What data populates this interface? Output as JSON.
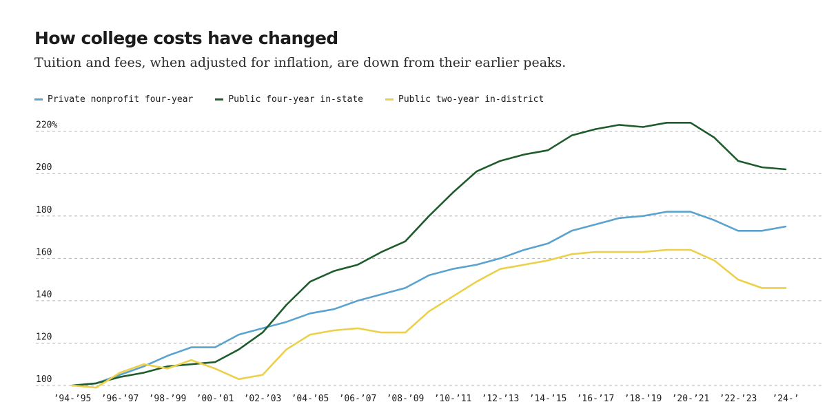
{
  "header": {
    "title": "How college costs have changed",
    "subtitle": "Tuition and fees, when adjusted for inflation, are down from their earlier peaks."
  },
  "legend": [
    {
      "label": "Private nonprofit four-year",
      "color": "#5ba3cf"
    },
    {
      "label": "Public four-year in-state",
      "color": "#1f5c2c"
    },
    {
      "label": "Public two-year in-district",
      "color": "#ecd04a"
    }
  ],
  "chart_data": {
    "type": "line",
    "title": "How college costs have changed",
    "subtitle": "Tuition and fees, when adjusted for inflation, are down from their earlier peaks.",
    "xlabel": "",
    "ylabel": "",
    "ylim": [
      99,
      224
    ],
    "grid": true,
    "legend_position": "top-left",
    "y_ticks": [
      100,
      120,
      140,
      160,
      180,
      200,
      220
    ],
    "y_tick_labels": [
      "100",
      "120",
      "140",
      "160",
      "180",
      "200",
      "220%"
    ],
    "x_tick_labels": [
      "’94-’95",
      "’96-’97",
      "’98-’99",
      "’00-’01",
      "’02-’03",
      "’04-’05",
      "’06-’07",
      "’08-’09",
      "’10-’11",
      "’12-’13",
      "’14-’15",
      "’16-’17",
      "’18-’19",
      "’20-’21",
      "’22-’23",
      "’24-’"
    ],
    "x_tick_indices": [
      0,
      2,
      4,
      6,
      8,
      10,
      12,
      14,
      16,
      18,
      20,
      22,
      24,
      26,
      28,
      30
    ],
    "categories": [
      "94-95",
      "95-96",
      "96-97",
      "97-98",
      "98-99",
      "99-00",
      "00-01",
      "01-02",
      "02-03",
      "03-04",
      "04-05",
      "05-06",
      "06-07",
      "07-08",
      "08-09",
      "09-10",
      "10-11",
      "11-12",
      "12-13",
      "13-14",
      "14-15",
      "15-16",
      "16-17",
      "17-18",
      "18-19",
      "19-20",
      "20-21",
      "21-22",
      "22-23",
      "23-24",
      "24-25"
    ],
    "series": [
      {
        "name": "Private nonprofit four-year",
        "color": "#5ba3cf",
        "values": [
          100,
          101,
          105,
          109,
          114,
          118,
          118,
          124,
          127,
          130,
          134,
          136,
          140,
          143,
          146,
          152,
          155,
          157,
          160,
          164,
          167,
          173,
          176,
          179,
          180,
          182,
          182,
          178,
          173,
          173,
          175
        ]
      },
      {
        "name": "Public four-year in-state",
        "color": "#1f5c2c",
        "values": [
          100,
          101,
          104,
          106,
          109,
          110,
          111,
          117,
          125,
          138,
          149,
          154,
          157,
          163,
          168,
          180,
          191,
          201,
          206,
          209,
          211,
          218,
          221,
          223,
          222,
          224,
          224,
          217,
          206,
          203,
          202
        ]
      },
      {
        "name": "Public two-year in-district",
        "color": "#ecd04a",
        "values": [
          100,
          99,
          106,
          110,
          108,
          112,
          108,
          103,
          105,
          117,
          124,
          126,
          127,
          125,
          125,
          135,
          142,
          149,
          155,
          157,
          159,
          162,
          163,
          163,
          163,
          164,
          164,
          159,
          150,
          146,
          146
        ]
      }
    ]
  }
}
